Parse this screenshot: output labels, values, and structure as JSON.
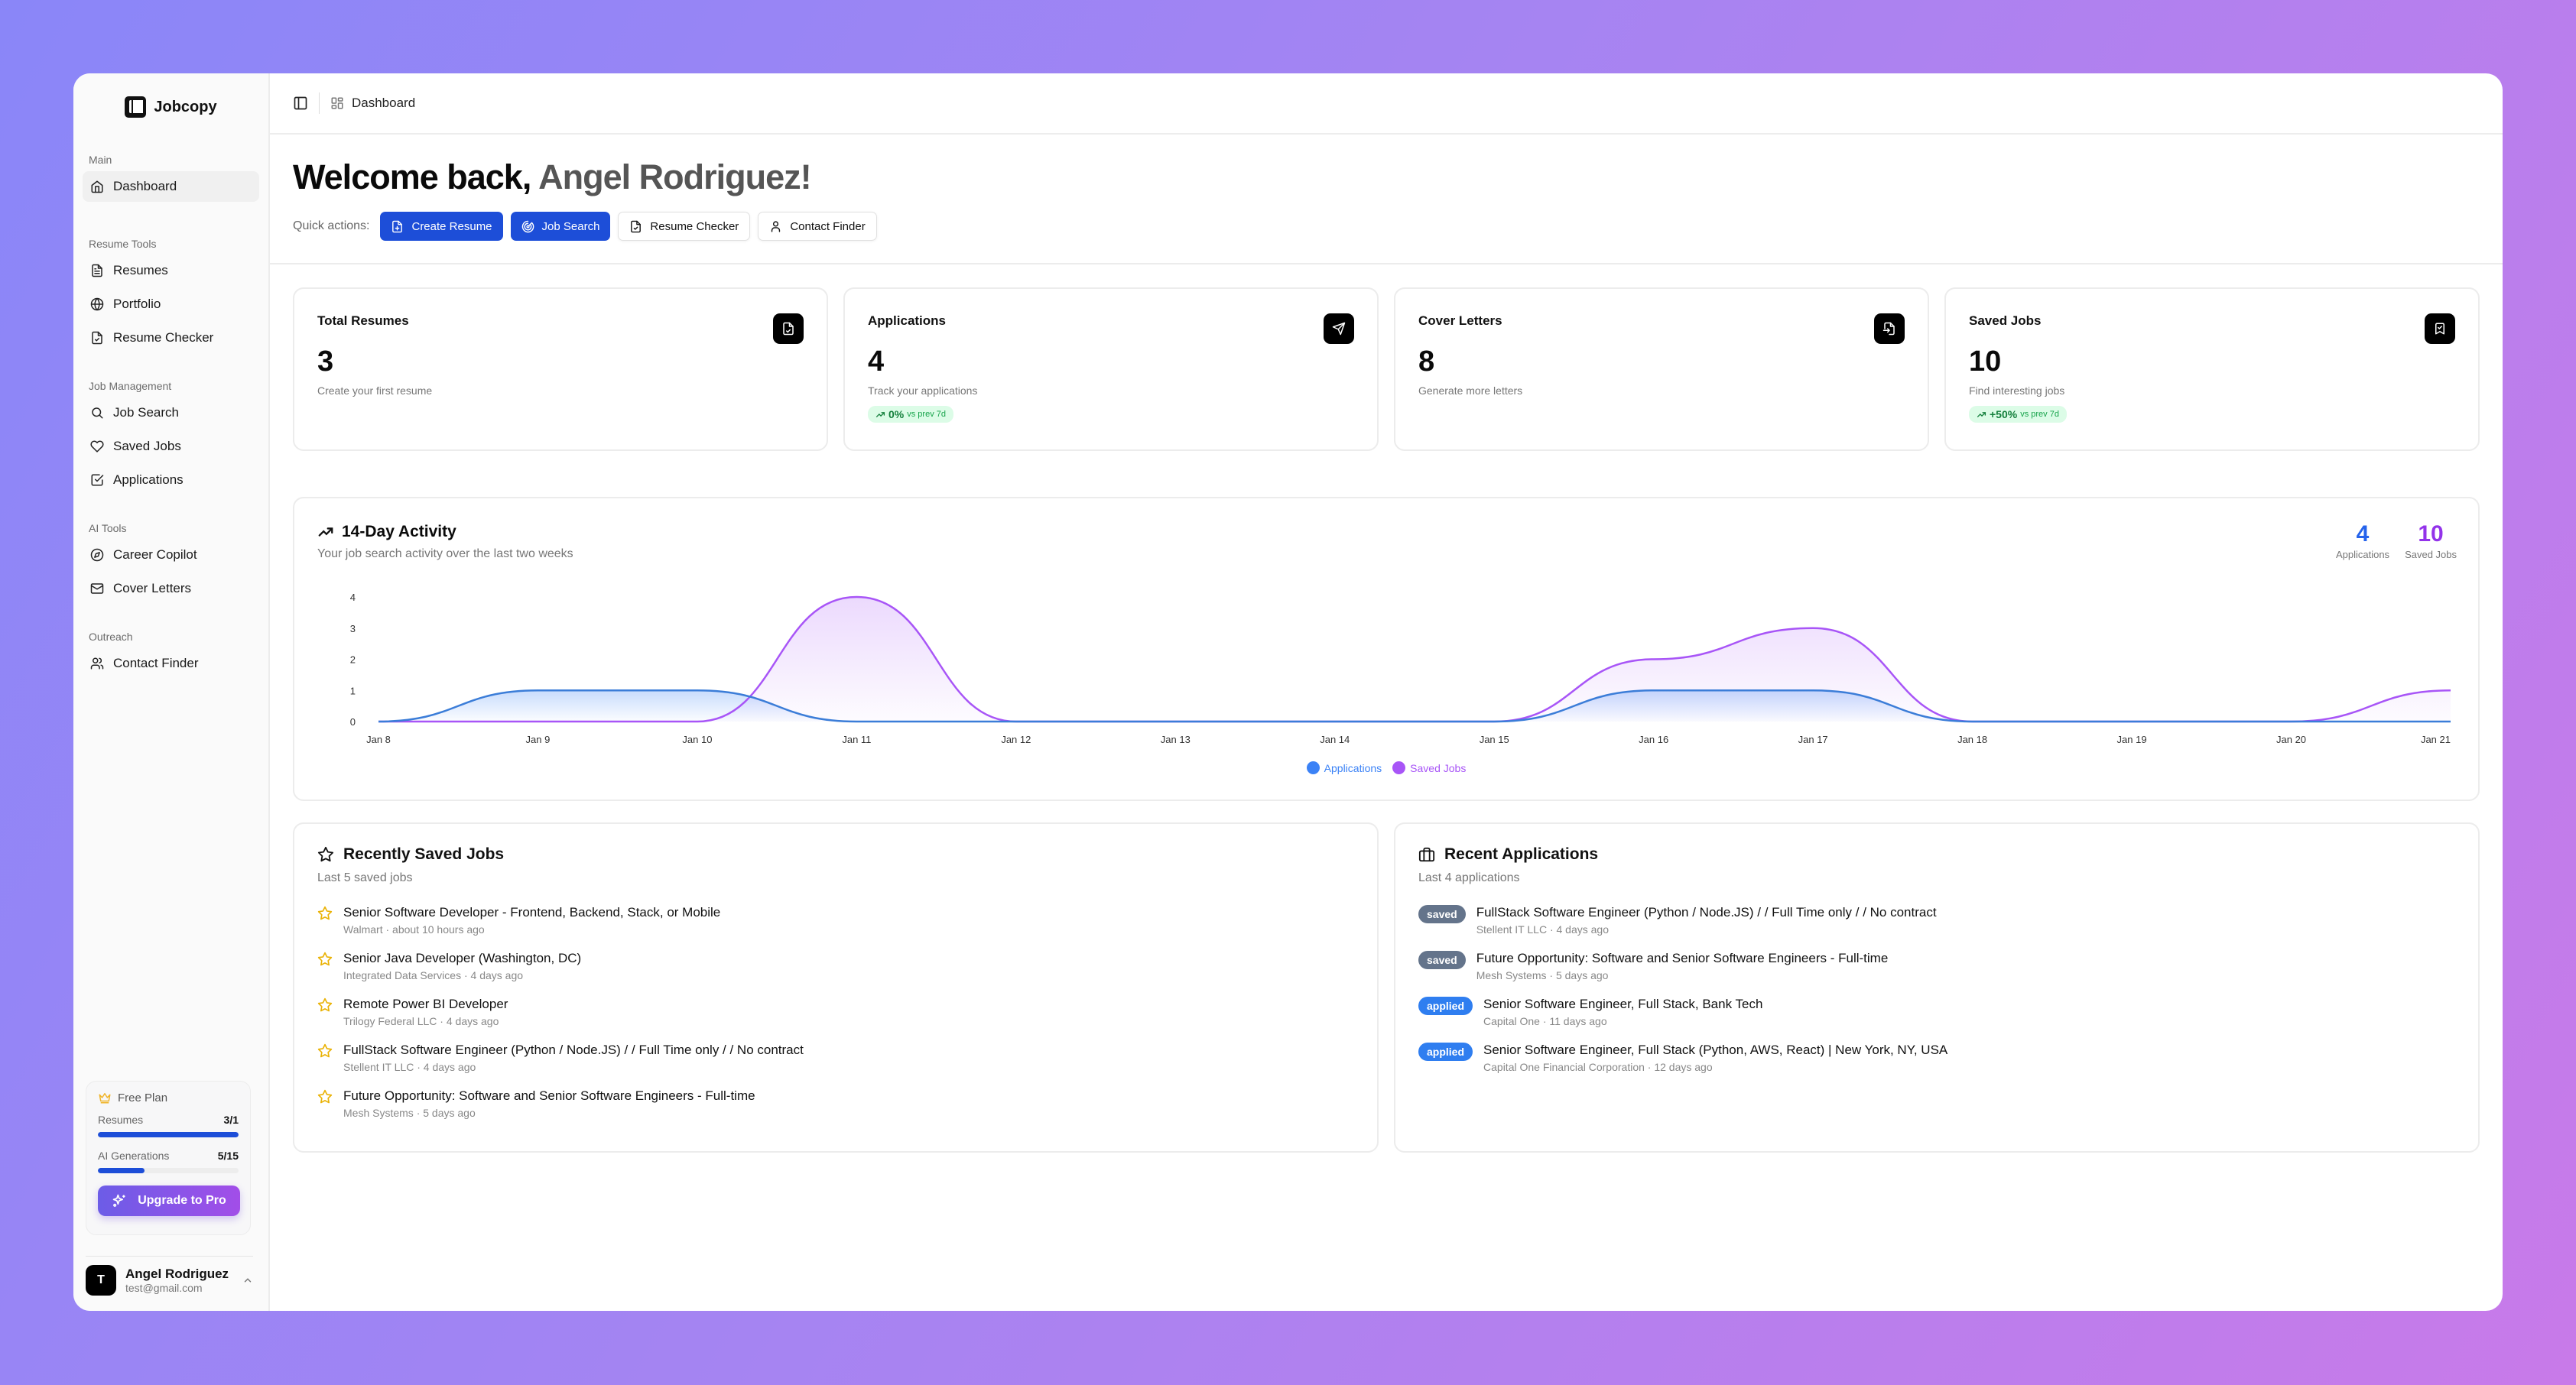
{
  "app": {
    "name": "Jobcopy"
  },
  "sidebar": {
    "groups": [
      {
        "label": "Main",
        "items": [
          {
            "label": "Dashboard",
            "icon": "home-icon",
            "active": true
          }
        ]
      },
      {
        "label": "Resume Tools",
        "items": [
          {
            "label": "Resumes",
            "icon": "file-text-icon"
          },
          {
            "label": "Portfolio",
            "icon": "globe-icon"
          },
          {
            "label": "Resume Checker",
            "icon": "file-check-icon"
          }
        ]
      },
      {
        "label": "Job Management",
        "items": [
          {
            "label": "Job Search",
            "icon": "search-icon"
          },
          {
            "label": "Saved Jobs",
            "icon": "heart-icon"
          },
          {
            "label": "Applications",
            "icon": "check-square-icon"
          }
        ]
      },
      {
        "label": "AI Tools",
        "items": [
          {
            "label": "Career Copilot",
            "icon": "compass-icon"
          },
          {
            "label": "Cover Letters",
            "icon": "mail-icon"
          }
        ]
      },
      {
        "label": "Outreach",
        "items": [
          {
            "label": "Contact Finder",
            "icon": "users-icon"
          }
        ]
      }
    ],
    "plan": {
      "name": "Free Plan",
      "icon": "crown-icon",
      "usage": [
        {
          "label": "Resumes",
          "value": "3/1",
          "percent": 100
        },
        {
          "label": "AI Generations",
          "value": "5/15",
          "percent": 33
        }
      ],
      "upgrade_label": "Upgrade to Pro"
    },
    "user": {
      "initial": "T",
      "name": "Angel Rodriguez",
      "email": "test@gmail.com"
    }
  },
  "topbar": {
    "breadcrumb": "Dashboard"
  },
  "welcome": {
    "prefix": "Welcome back, ",
    "name": "Angel Rodriguez!"
  },
  "quick_actions": {
    "label": "Quick actions:",
    "buttons": [
      {
        "label": "Create Resume",
        "style": "primary",
        "icon": "file-plus-icon"
      },
      {
        "label": "Job Search",
        "style": "primary",
        "icon": "radar-icon"
      },
      {
        "label": "Resume Checker",
        "style": "secondary",
        "icon": "file-check-icon"
      },
      {
        "label": "Contact Finder",
        "style": "secondary",
        "icon": "user-icon"
      }
    ]
  },
  "stats": [
    {
      "title": "Total Resumes",
      "value": "3",
      "subtitle": "Create your first resume",
      "icon": "file-check-icon"
    },
    {
      "title": "Applications",
      "value": "4",
      "subtitle": "Track your applications",
      "icon": "send-icon",
      "trend": {
        "value": "0%",
        "label": "vs prev 7d"
      }
    },
    {
      "title": "Cover Letters",
      "value": "8",
      "subtitle": "Generate more letters",
      "icon": "file-import-icon"
    },
    {
      "title": "Saved Jobs",
      "value": "10",
      "subtitle": "Find interesting jobs",
      "icon": "bookmark-check-icon",
      "trend": {
        "value": "+50%",
        "label": "vs prev 7d"
      }
    }
  ],
  "activity": {
    "title": "14-Day Activity",
    "subtitle": "Your job search activity over the last two weeks",
    "totals": [
      {
        "value": "4",
        "label": "Applications",
        "color": "#2563eb"
      },
      {
        "value": "10",
        "label": "Saved Jobs",
        "color": "#9333ea"
      }
    ]
  },
  "chart_data": {
    "type": "area",
    "title": "14-Day Activity",
    "subtitle": "Your job search activity over the last two weeks",
    "xlabel": "",
    "ylabel": "",
    "categories": [
      "Jan 8",
      "Jan 9",
      "Jan 10",
      "Jan 11",
      "Jan 12",
      "Jan 13",
      "Jan 14",
      "Jan 15",
      "Jan 16",
      "Jan 17",
      "Jan 18",
      "Jan 19",
      "Jan 20",
      "Jan 21"
    ],
    "y_ticks": [
      0,
      1,
      2,
      3,
      4
    ],
    "ylim": [
      0,
      4
    ],
    "grid": false,
    "legend_position": "bottom",
    "series": [
      {
        "name": "Applications",
        "color": "#3b82f6",
        "values": [
          0,
          1,
          1,
          0,
          0,
          0,
          0,
          0,
          1,
          1,
          0,
          0,
          0,
          0
        ]
      },
      {
        "name": "Saved Jobs",
        "color": "#a855f7",
        "values": [
          0,
          0,
          0,
          4,
          0,
          0,
          0,
          0,
          2,
          3,
          0,
          0,
          0,
          1
        ]
      }
    ]
  },
  "saved_jobs": {
    "title": "Recently Saved Jobs",
    "subtitle": "Last 5 saved jobs",
    "items": [
      {
        "title": "Senior Software Developer - Frontend, Backend, Stack, or Mobile",
        "meta": "Walmart · about 10 hours ago"
      },
      {
        "title": "Senior Java Developer (Washington, DC)",
        "meta": "Integrated Data Services · 4 days ago"
      },
      {
        "title": "Remote Power BI Developer",
        "meta": "Trilogy Federal LLC · 4 days ago"
      },
      {
        "title": "FullStack Software Engineer (Python / Node.JS) / / Full Time only / / No contract",
        "meta": "Stellent IT LLC · 4 days ago"
      },
      {
        "title": "Future Opportunity: Software and Senior Software Engineers - Full-time",
        "meta": "Mesh Systems · 5 days ago"
      }
    ]
  },
  "recent_applications": {
    "title": "Recent Applications",
    "subtitle": "Last 4 applications",
    "items": [
      {
        "status": "saved",
        "title": "FullStack Software Engineer (Python / Node.JS) / / Full Time only / / No contract",
        "meta": "Stellent IT LLC · 4 days ago"
      },
      {
        "status": "saved",
        "title": "Future Opportunity: Software and Senior Software Engineers - Full-time",
        "meta": "Mesh Systems · 5 days ago"
      },
      {
        "status": "applied",
        "title": "Senior Software Engineer, Full Stack, Bank Tech",
        "meta": "Capital One · 11 days ago"
      },
      {
        "status": "applied",
        "title": "Senior Software Engineer, Full Stack (Python, AWS, React) | New York, NY, USA",
        "meta": "Capital One Financial Corporation · 12 days ago"
      }
    ]
  }
}
